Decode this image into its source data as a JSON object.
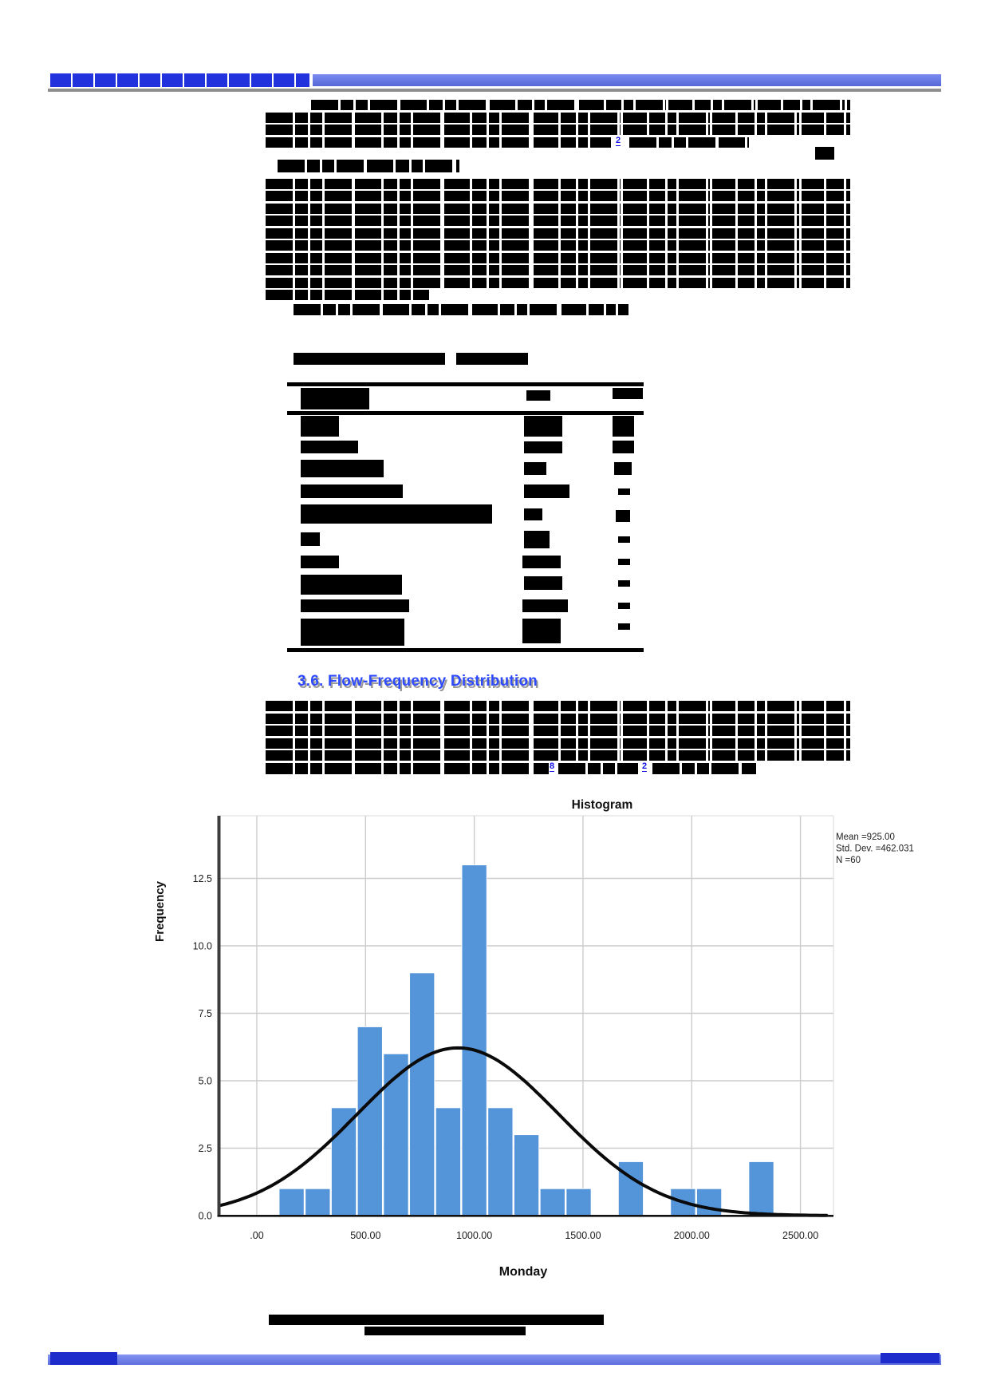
{
  "header": {
    "journal_line_redacted": true,
    "accent_color": "#6b7de8"
  },
  "links": {
    "para1_ref": "2",
    "para3_ref1": "8",
    "para3_ref2": "2"
  },
  "section_heading": {
    "text": "3.6. Flow-Frequency Distribution",
    "color": "#2f4bff"
  },
  "chart_data": {
    "type": "histogram",
    "title": "Histogram",
    "xlabel": "Monday",
    "ylabel": "Frequency",
    "stats_box": [
      "Mean =925.00",
      "Std. Dev. =462.031",
      "N =60"
    ],
    "bins": {
      "start": 100,
      "width": 120,
      "frequencies": [
        1,
        1,
        4,
        7,
        6,
        9,
        4,
        13,
        4,
        3,
        1,
        1,
        0,
        2,
        0,
        1,
        1,
        0,
        2
      ]
    },
    "normal_curve": {
      "mean": 925,
      "std_dev": 462.031,
      "n": 60
    },
    "x_ticks": {
      "values": [
        0,
        500,
        1000,
        1500,
        2000,
        2500
      ],
      "labels": [
        ".00",
        "500.00",
        "1000.00",
        "1500.00",
        "2000.00",
        "2500.00"
      ]
    },
    "y_ticks": {
      "values": [
        0,
        2.5,
        5,
        7.5,
        10,
        12.5
      ],
      "labels": [
        "0.0",
        "2.5",
        "5.0",
        "7.5",
        "10.0",
        "12.5"
      ]
    },
    "ylim": [
      0,
      14.8
    ],
    "xlim": [
      -170,
      2630
    ],
    "grid": true,
    "legend_position": "right-top",
    "bar_color": "#5494d8",
    "curve_color": "#0a0a0a",
    "grid_color": "#cccccc",
    "axis_color": "#3c3c3c"
  },
  "redacted": {
    "blue_text_lines": [
      [
        63,
        92,
        325,
        17
      ]
    ],
    "black_text_lines": [
      [
        390,
        125,
        676,
        13
      ],
      [
        333,
        141,
        733,
        13
      ],
      [
        333,
        156,
        733,
        13
      ],
      [
        333,
        172,
        433,
        13
      ],
      [
        789,
        172,
        150,
        13
      ],
      [
        348,
        200,
        228,
        16
      ],
      [
        333,
        224,
        733,
        13
      ],
      [
        333,
        239,
        733,
        13
      ],
      [
        333,
        255,
        733,
        13
      ],
      [
        333,
        270,
        733,
        13
      ],
      [
        333,
        286,
        733,
        13
      ],
      [
        333,
        301,
        733,
        13
      ],
      [
        333,
        317,
        733,
        13
      ],
      [
        333,
        332,
        733,
        13
      ],
      [
        333,
        348,
        733,
        13
      ],
      [
        333,
        363,
        205,
        13
      ],
      [
        368,
        381,
        420,
        14
      ],
      [
        333,
        878,
        733,
        13
      ],
      [
        333,
        894,
        733,
        13
      ],
      [
        333,
        909,
        733,
        13
      ],
      [
        333,
        925,
        733,
        13
      ],
      [
        333,
        940,
        733,
        13
      ],
      [
        333,
        956,
        355,
        14
      ],
      [
        700,
        956,
        100,
        14
      ],
      [
        818,
        956,
        130,
        14
      ]
    ],
    "solid_blocks": [
      [
        1022,
        184,
        24,
        16
      ],
      [
        368,
        442,
        190,
        15
      ],
      [
        572,
        442,
        90,
        15
      ],
      [
        360,
        479,
        447,
        5
      ],
      [
        377,
        486,
        86,
        27
      ],
      [
        660,
        489,
        30,
        13
      ],
      [
        768,
        486,
        38,
        14
      ],
      [
        360,
        515,
        447,
        5
      ],
      [
        377,
        521,
        48,
        26
      ],
      [
        657,
        521,
        48,
        26
      ],
      [
        768,
        521,
        27,
        26
      ],
      [
        377,
        552,
        72,
        16
      ],
      [
        657,
        553,
        48,
        15
      ],
      [
        768,
        552,
        27,
        16
      ],
      [
        377,
        576,
        104,
        22
      ],
      [
        657,
        579,
        28,
        16
      ],
      [
        770,
        579,
        22,
        16
      ],
      [
        377,
        607,
        128,
        17
      ],
      [
        657,
        607,
        57,
        17
      ],
      [
        775,
        612,
        15,
        8
      ],
      [
        377,
        632,
        240,
        24
      ],
      [
        657,
        637,
        23,
        15
      ],
      [
        772,
        639,
        18,
        15
      ],
      [
        377,
        667,
        24,
        17
      ],
      [
        657,
        665,
        32,
        22
      ],
      [
        775,
        672,
        15,
        8
      ],
      [
        377,
        696,
        48,
        16
      ],
      [
        655,
        696,
        48,
        16
      ],
      [
        775,
        700,
        15,
        8
      ],
      [
        377,
        720,
        127,
        25
      ],
      [
        657,
        722,
        48,
        17
      ],
      [
        775,
        727,
        15,
        8
      ],
      [
        377,
        751,
        136,
        16
      ],
      [
        655,
        751,
        57,
        16
      ],
      [
        775,
        755,
        15,
        8
      ],
      [
        377,
        775,
        130,
        34
      ],
      [
        655,
        775,
        48,
        31
      ],
      [
        775,
        781,
        15,
        8
      ],
      [
        360,
        812,
        447,
        5
      ],
      [
        337,
        1647,
        420,
        13
      ],
      [
        457,
        1662,
        202,
        11
      ]
    ],
    "footer_navy_blocks": [
      [
        63,
        1694,
        84,
        16
      ],
      [
        1104,
        1695,
        74,
        13
      ]
    ]
  }
}
